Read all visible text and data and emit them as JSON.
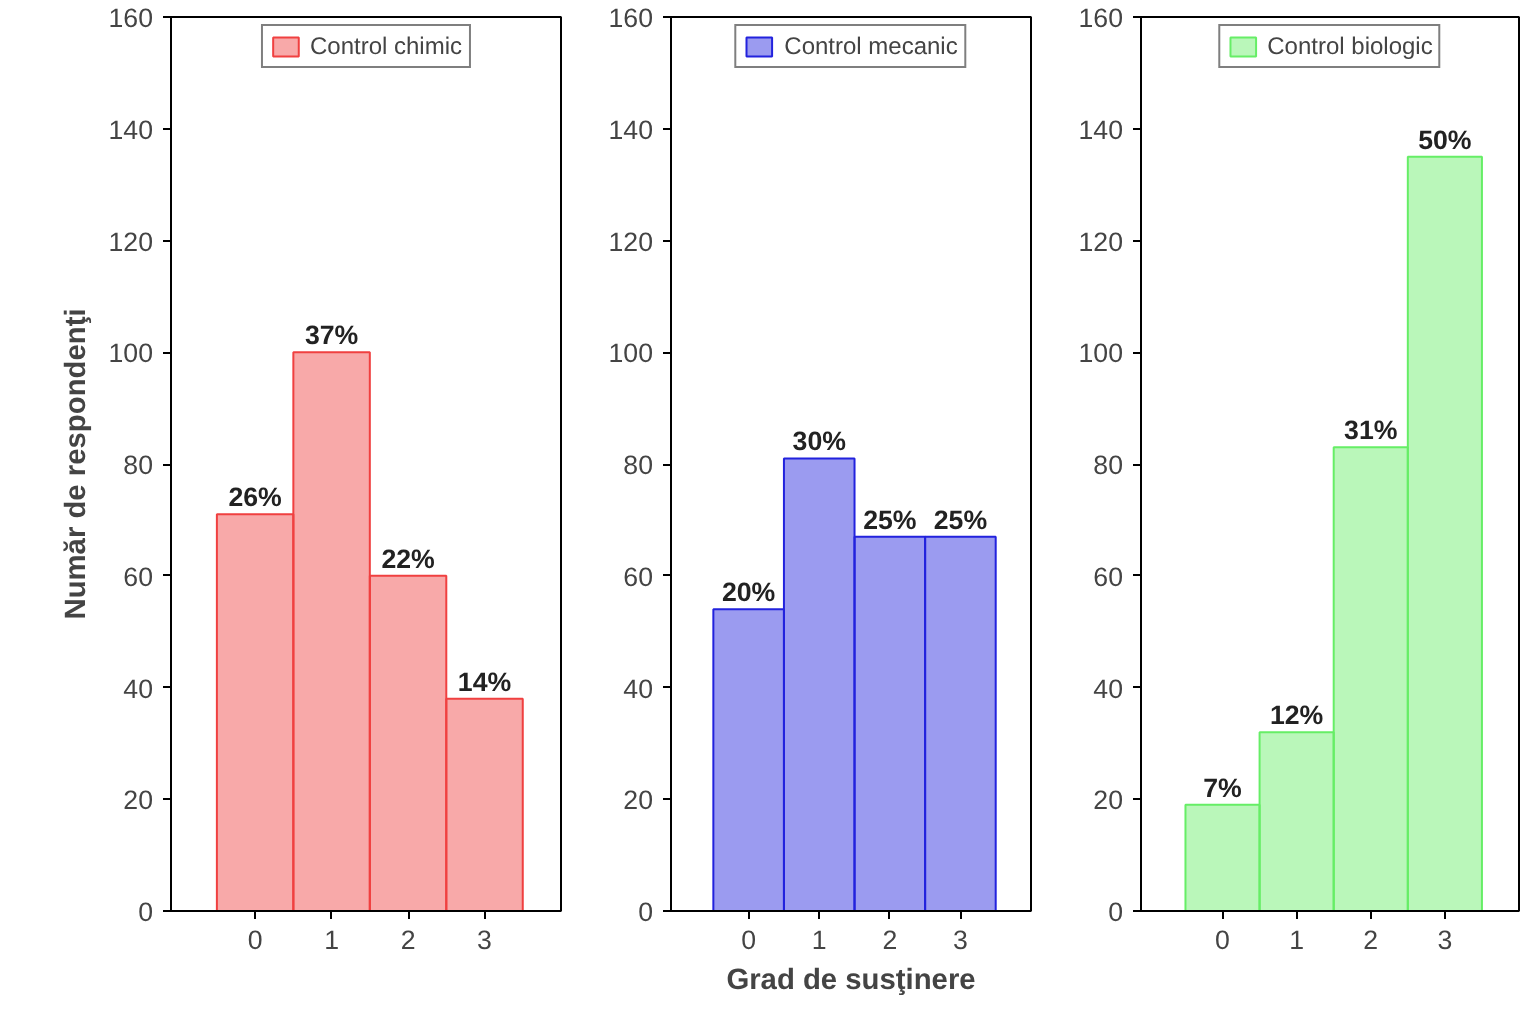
{
  "chart_data": [
    {
      "type": "bar",
      "x": [
        0,
        1,
        2,
        3
      ],
      "xlim": [
        -1.1,
        4.0
      ],
      "xticks": [
        0,
        1,
        2,
        3
      ],
      "ylim": [
        0,
        160
      ],
      "yticks": [
        0,
        20,
        40,
        60,
        80,
        100,
        120,
        140,
        160
      ],
      "ylabel": "Număr de respondenţi",
      "legend": "top",
      "grid": false,
      "series": [
        {
          "name": "Control chimic",
          "color": "#f04040",
          "values": [
            71,
            100,
            60,
            38
          ]
        }
      ],
      "annotations": [
        {
          "text": "26%",
          "x": 0,
          "y": 71
        },
        {
          "text": "37%",
          "x": 1,
          "y": 100
        },
        {
          "text": "22%",
          "x": 2,
          "y": 60
        },
        {
          "text": "14%",
          "x": 3,
          "y": 38
        }
      ]
    },
    {
      "type": "bar",
      "x": [
        0,
        1,
        2,
        3
      ],
      "xlim": [
        -1.1,
        4.0
      ],
      "xticks": [
        0,
        1,
        2,
        3
      ],
      "ylim": [
        0,
        160
      ],
      "yticks": [
        0,
        20,
        40,
        60,
        80,
        100,
        120,
        140,
        160
      ],
      "xlabel": "Grad de susţinere",
      "legend": "top",
      "grid": false,
      "series": [
        {
          "name": "Control mecanic",
          "color": "#2222dd",
          "values": [
            54,
            81,
            67,
            67
          ]
        }
      ],
      "annotations": [
        {
          "text": "20%",
          "x": 0,
          "y": 54
        },
        {
          "text": "30%",
          "x": 1,
          "y": 81
        },
        {
          "text": "25%",
          "x": 2,
          "y": 67
        },
        {
          "text": "25%",
          "x": 3,
          "y": 67
        }
      ]
    },
    {
      "type": "bar",
      "x": [
        0,
        1,
        2,
        3
      ],
      "xlim": [
        -1.1,
        4.0
      ],
      "xticks": [
        0,
        1,
        2,
        3
      ],
      "ylim": [
        0,
        160
      ],
      "yticks": [
        0,
        20,
        40,
        60,
        80,
        100,
        120,
        140,
        160
      ],
      "legend": "top",
      "grid": false,
      "series": [
        {
          "name": "Control biologic",
          "color": "#66ee66",
          "values": [
            19,
            32,
            83,
            135
          ]
        }
      ],
      "annotations": [
        {
          "text": "7%",
          "x": 0,
          "y": 19
        },
        {
          "text": "12%",
          "x": 1,
          "y": 32
        },
        {
          "text": "31%",
          "x": 2,
          "y": 83
        },
        {
          "text": "50%",
          "x": 3,
          "y": 135
        }
      ]
    }
  ]
}
